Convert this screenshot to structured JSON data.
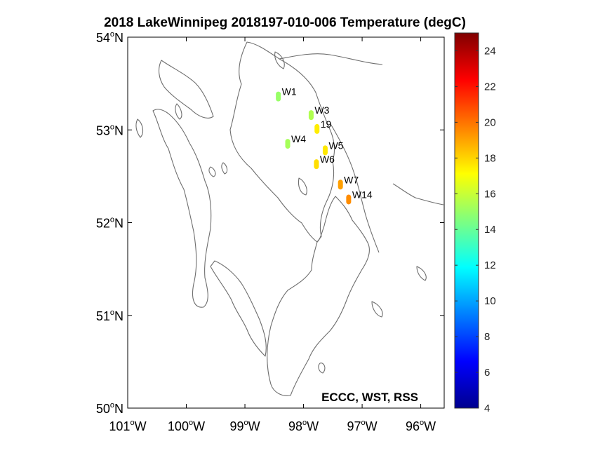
{
  "title": "2018 LakeWinnipeg 2018197-010-006 Temperature (degC)",
  "credit": "ECCC, WST, RSS",
  "map": {
    "lon_range": [
      -101,
      -95.6
    ],
    "lat_range": [
      50,
      54
    ],
    "x_ticks": [
      {
        "lon": -101,
        "label": "101",
        "hemi": "W"
      },
      {
        "lon": -100,
        "label": "100",
        "hemi": "W"
      },
      {
        "lon": -99,
        "label": "99",
        "hemi": "W"
      },
      {
        "lon": -98,
        "label": "98",
        "hemi": "W"
      },
      {
        "lon": -97,
        "label": "97",
        "hemi": "W"
      },
      {
        "lon": -96,
        "label": "96",
        "hemi": "W"
      }
    ],
    "y_ticks": [
      {
        "lat": 54,
        "label": "54",
        "hemi": "N"
      },
      {
        "lat": 53,
        "label": "53",
        "hemi": "N"
      },
      {
        "lat": 52,
        "label": "52",
        "hemi": "N"
      },
      {
        "lat": 51,
        "label": "51",
        "hemi": "N"
      },
      {
        "lat": 50,
        "label": "50",
        "hemi": "N"
      }
    ],
    "degree_symbol": "o"
  },
  "chart_data": {
    "type": "scatter",
    "title": "2018 LakeWinnipeg 2018197-010-006 Temperature (degC)",
    "xlabel": "",
    "ylabel": "",
    "xlim": [
      -101,
      -95.6
    ],
    "ylim": [
      50,
      54
    ],
    "stations": [
      {
        "name": "W1",
        "lon": -98.43,
        "lat": 53.36,
        "temp": 15.0
      },
      {
        "name": "W3",
        "lon": -97.87,
        "lat": 53.16,
        "temp": 15.5
      },
      {
        "name": "19",
        "lon": -97.77,
        "lat": 53.01,
        "temp": 17.5
      },
      {
        "name": "W4",
        "lon": -98.27,
        "lat": 52.85,
        "temp": 15.3
      },
      {
        "name": "W5",
        "lon": -97.63,
        "lat": 52.78,
        "temp": 17.6
      },
      {
        "name": "W6",
        "lon": -97.78,
        "lat": 52.63,
        "temp": 17.8
      },
      {
        "name": "W7",
        "lon": -97.37,
        "lat": 52.41,
        "temp": 19.1
      },
      {
        "name": "W14",
        "lon": -97.23,
        "lat": 52.25,
        "temp": 19.5
      }
    ],
    "colorbar": {
      "min": 4,
      "max": 25,
      "ticks": [
        4,
        6,
        8,
        10,
        12,
        14,
        16,
        18,
        20,
        22,
        24
      ],
      "colormap": "jet"
    }
  }
}
